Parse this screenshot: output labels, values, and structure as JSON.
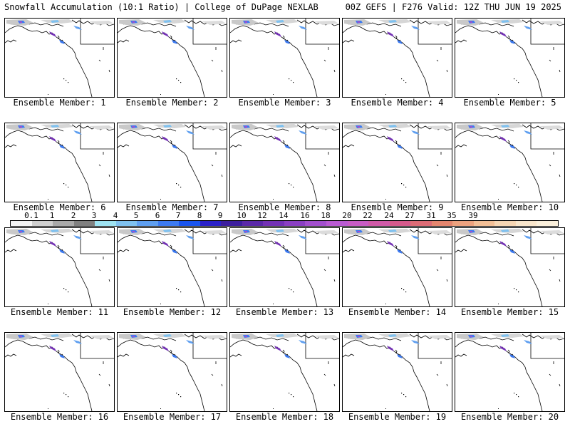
{
  "header": {
    "left": "Snowfall Accumulation (10:1 Ratio) | College of DuPage NEXLAB",
    "right": "00Z GEFS | F276 Valid: 12Z THU JUN 19 2025"
  },
  "panels": [
    {
      "label": "Ensemble Member: 1"
    },
    {
      "label": "Ensemble Member: 2"
    },
    {
      "label": "Ensemble Member: 3"
    },
    {
      "label": "Ensemble Member: 4"
    },
    {
      "label": "Ensemble Member: 5"
    },
    {
      "label": "Ensemble Member: 6"
    },
    {
      "label": "Ensemble Member: 7"
    },
    {
      "label": "Ensemble Member: 8"
    },
    {
      "label": "Ensemble Member: 9"
    },
    {
      "label": "Ensemble Member: 10"
    },
    {
      "label": "Ensemble Member: 11"
    },
    {
      "label": "Ensemble Member: 12"
    },
    {
      "label": "Ensemble Member: 13"
    },
    {
      "label": "Ensemble Member: 14"
    },
    {
      "label": "Ensemble Member: 15"
    },
    {
      "label": "Ensemble Member: 16"
    },
    {
      "label": "Ensemble Member: 17"
    },
    {
      "label": "Ensemble Member: 18"
    },
    {
      "label": "Ensemble Member: 19"
    },
    {
      "label": "Ensemble Member: 20"
    }
  ],
  "colorbar": {
    "labels": [
      "0.1",
      "1",
      "2",
      "3",
      "4",
      "5",
      "6",
      "7",
      "8",
      "9",
      "10",
      "12",
      "14",
      "16",
      "18",
      "20",
      "22",
      "24",
      "27",
      "31",
      "35",
      "39"
    ],
    "colors": [
      "#f4f4f4",
      "#cfcfcf",
      "#a9a9a9",
      "#808080",
      "#9ee3f2",
      "#7fc1ef",
      "#5f9ff0",
      "#3c7af1",
      "#1a55ee",
      "#2b22c9",
      "#3d1f9e",
      "#5a28a8",
      "#7331b5",
      "#8a3fc2",
      "#a24fcd",
      "#b95bd2",
      "#c85cc4",
      "#d05aa8",
      "#d55a8c",
      "#dc6c76",
      "#e4866f",
      "#eca27f",
      "#f2bf97",
      "#f6d6b4",
      "#f9e6cc",
      "#fbf0dc"
    ]
  }
}
